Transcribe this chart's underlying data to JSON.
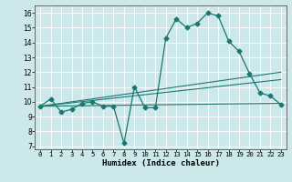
{
  "xlabel": "Humidex (Indice chaleur)",
  "background_color": "#cce8eb",
  "grid_color": "#ffffff",
  "line_color": "#1a7870",
  "xlim": [
    -0.5,
    23.5
  ],
  "ylim": [
    6.8,
    16.5
  ],
  "yticks": [
    7,
    8,
    9,
    10,
    11,
    12,
    13,
    14,
    15,
    16
  ],
  "xticks": [
    0,
    1,
    2,
    3,
    4,
    5,
    6,
    7,
    8,
    9,
    10,
    11,
    12,
    13,
    14,
    15,
    16,
    17,
    18,
    19,
    20,
    21,
    22,
    23
  ],
  "main_series": {
    "x": [
      0,
      1,
      2,
      3,
      4,
      5,
      6,
      7,
      8,
      9,
      10,
      11,
      12,
      13,
      14,
      15,
      16,
      17,
      18,
      19,
      20,
      21,
      22,
      23
    ],
    "y": [
      9.7,
      10.2,
      9.3,
      9.5,
      9.9,
      10.0,
      9.7,
      9.7,
      7.2,
      11.0,
      9.6,
      9.6,
      14.3,
      15.6,
      15.0,
      15.3,
      16.0,
      15.8,
      14.1,
      13.4,
      11.9,
      10.6,
      10.4,
      9.8
    ]
  },
  "trend_lines": [
    {
      "x": [
        0,
        23
      ],
      "y": [
        9.7,
        9.9
      ]
    },
    {
      "x": [
        0,
        23
      ],
      "y": [
        9.7,
        12.0
      ]
    },
    {
      "x": [
        0,
        23
      ],
      "y": [
        9.7,
        11.5
      ]
    }
  ]
}
